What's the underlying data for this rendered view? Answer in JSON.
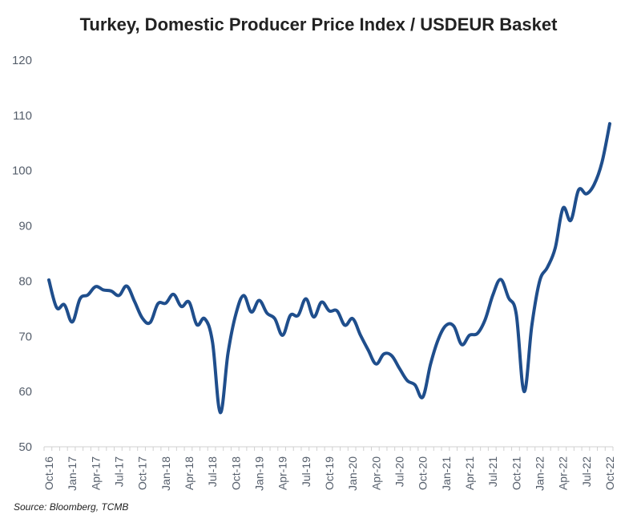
{
  "chart_data": {
    "type": "line",
    "title": "Turkey, Domestic Producer Price Index / USDEUR Basket",
    "xlabel": "",
    "ylabel": "",
    "ylim": [
      50,
      120
    ],
    "yticks": [
      50,
      60,
      70,
      80,
      90,
      100,
      110,
      120
    ],
    "grid": false,
    "xtick_labels": [
      "Oct-16",
      "Jan-17",
      "Apr-17",
      "Jul-17",
      "Oct-17",
      "Jan-18",
      "Apr-18",
      "Jul-18",
      "Oct-18",
      "Jan-19",
      "Apr-19",
      "Jul-19",
      "Oct-19",
      "Jan-20",
      "Apr-20",
      "Jul-20",
      "Oct-20",
      "Jan-21",
      "Apr-21",
      "Jul-21",
      "Oct-21",
      "Jan-22",
      "Apr-22",
      "Jul-22",
      "Oct-22"
    ],
    "series": [
      {
        "color": "#1f4e8c",
        "x": [
          "Oct-16",
          "Nov-16",
          "Dec-16",
          "Jan-17",
          "Feb-17",
          "Mar-17",
          "Apr-17",
          "May-17",
          "Jun-17",
          "Jul-17",
          "Aug-17",
          "Sep-17",
          "Oct-17",
          "Nov-17",
          "Dec-17",
          "Jan-18",
          "Feb-18",
          "Mar-18",
          "Apr-18",
          "May-18",
          "Jun-18",
          "Jul-18",
          "Aug-18",
          "Sep-18",
          "Oct-18",
          "Nov-18",
          "Dec-18",
          "Jan-19",
          "Feb-19",
          "Mar-19",
          "Apr-19",
          "May-19",
          "Jun-19",
          "Jul-19",
          "Aug-19",
          "Sep-19",
          "Oct-19",
          "Nov-19",
          "Dec-19",
          "Jan-20",
          "Feb-20",
          "Mar-20",
          "Apr-20",
          "May-20",
          "Jun-20",
          "Jul-20",
          "Aug-20",
          "Sep-20",
          "Oct-20",
          "Nov-20",
          "Dec-20",
          "Jan-21",
          "Feb-21",
          "Mar-21",
          "Apr-21",
          "May-21",
          "Jun-21",
          "Jul-21",
          "Aug-21",
          "Sep-21",
          "Oct-21",
          "Nov-21",
          "Dec-21",
          "Jan-22",
          "Feb-22",
          "Mar-22",
          "Apr-22",
          "May-22",
          "Jun-22",
          "Jul-22",
          "Aug-22",
          "Sep-22",
          "Oct-22"
        ],
        "values": [
          80.2,
          75.2,
          75.7,
          72.6,
          76.8,
          77.5,
          79.0,
          78.4,
          78.2,
          77.4,
          79.1,
          76.3,
          73.3,
          72.5,
          75.9,
          76.0,
          77.6,
          75.4,
          76.2,
          72.1,
          73.2,
          69.0,
          56.2,
          67.0,
          74.0,
          77.4,
          74.4,
          76.5,
          74.2,
          73.2,
          70.2,
          73.8,
          73.8,
          76.8,
          73.5,
          76.2,
          74.6,
          74.6,
          72.0,
          73.2,
          70.2,
          67.5,
          65.0,
          66.8,
          66.5,
          64.2,
          62.0,
          61.2,
          59.0,
          65.0,
          69.5,
          72.0,
          71.8,
          68.5,
          70.2,
          70.5,
          73.0,
          77.5,
          80.3,
          77.0,
          74.0,
          60.0,
          72.0,
          80.0,
          82.5,
          86.0,
          93.2,
          91.0,
          96.5,
          95.8,
          97.5,
          101.5,
          108.5
        ]
      }
    ]
  },
  "source_note": "Source: Bloomberg, TCMB"
}
